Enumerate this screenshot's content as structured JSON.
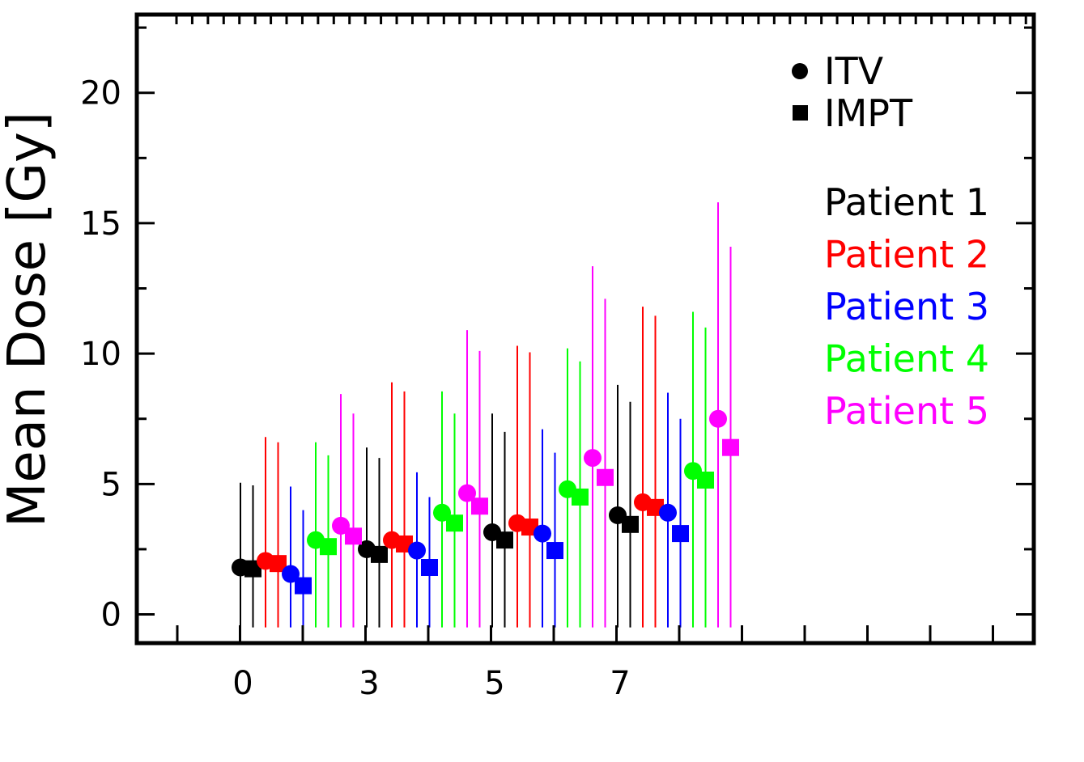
{
  "chart_data": {
    "type": "scatter",
    "ylabel": "Mean Dose [Gy]",
    "xlabel": "",
    "ylim": [
      -1.1,
      23.0
    ],
    "y_ticks": [
      0,
      5,
      10,
      15,
      20
    ],
    "categories": [
      "0",
      "3",
      "5",
      "7"
    ],
    "grid": false,
    "legend_placement": "top-right",
    "marker_legend": [
      {
        "label": "ITV",
        "marker": "circle"
      },
      {
        "label": "IMPT",
        "marker": "square"
      }
    ],
    "series": [
      {
        "name": "Patient 1",
        "color": "#000000",
        "itv": {
          "values": [
            1.8,
            2.5,
            3.15,
            3.8
          ],
          "err_top": [
            5.05,
            6.4,
            7.7,
            8.8
          ]
        },
        "impt": {
          "values": [
            1.75,
            2.3,
            2.85,
            3.45
          ],
          "err_top": [
            4.95,
            6.0,
            7.0,
            8.15
          ]
        }
      },
      {
        "name": "Patient 2",
        "color": "#ff0000",
        "itv": {
          "values": [
            2.05,
            2.85,
            3.5,
            4.3
          ],
          "err_top": [
            6.8,
            8.9,
            10.3,
            11.8
          ]
        },
        "impt": {
          "values": [
            1.95,
            2.7,
            3.35,
            4.1
          ],
          "err_top": [
            6.6,
            8.55,
            10.05,
            11.45
          ]
        }
      },
      {
        "name": "Patient 3",
        "color": "#0000ff",
        "itv": {
          "values": [
            1.55,
            2.45,
            3.1,
            3.9
          ],
          "err_top": [
            4.9,
            5.45,
            7.1,
            8.5
          ]
        },
        "impt": {
          "values": [
            1.1,
            1.8,
            2.45,
            3.1
          ],
          "err_top": [
            4.0,
            4.5,
            6.2,
            7.5
          ]
        }
      },
      {
        "name": "Patient 4",
        "color": "#00ff00",
        "itv": {
          "values": [
            2.85,
            3.9,
            4.8,
            5.5
          ],
          "err_top": [
            6.6,
            8.55,
            10.2,
            11.6
          ]
        },
        "impt": {
          "values": [
            2.6,
            3.5,
            4.5,
            5.15
          ],
          "err_top": [
            6.1,
            7.7,
            9.7,
            11.0
          ]
        }
      },
      {
        "name": "Patient 5",
        "color": "#ff00ff",
        "itv": {
          "values": [
            3.4,
            4.65,
            6.0,
            7.5
          ],
          "err_top": [
            8.45,
            10.9,
            13.35,
            15.8
          ]
        },
        "impt": {
          "values": [
            3.0,
            4.15,
            5.25,
            6.4
          ],
          "err_top": [
            7.7,
            10.1,
            12.1,
            14.1
          ]
        }
      }
    ]
  }
}
